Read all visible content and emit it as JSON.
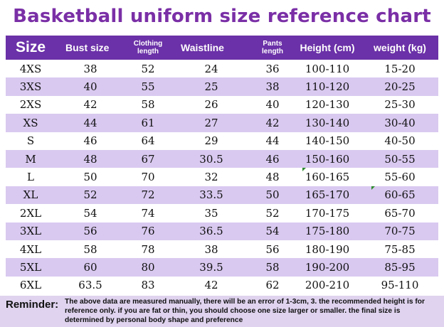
{
  "title": "Basketball uniform size reference chart",
  "headers": {
    "size": "Size",
    "bust": "Bust size",
    "clothing_line1": "Clothing",
    "clothing_line2": "length",
    "waistline": "Waistline",
    "pants_line1": "Pants",
    "pants_line2": "length",
    "height": "Height (cm)",
    "weight": "weight (kg)"
  },
  "rows": [
    {
      "size": "4XS",
      "bust": "38",
      "clothing": "52",
      "waist": "24",
      "pants": "36",
      "height": "100-110",
      "weight": "15-20"
    },
    {
      "size": "3XS",
      "bust": "40",
      "clothing": "55",
      "waist": "25",
      "pants": "38",
      "height": "110-120",
      "weight": "20-25"
    },
    {
      "size": "2XS",
      "bust": "42",
      "clothing": "58",
      "waist": "26",
      "pants": "40",
      "height": "120-130",
      "weight": "25-30"
    },
    {
      "size": "XS",
      "bust": "44",
      "clothing": "61",
      "waist": "27",
      "pants": "42",
      "height": "130-140",
      "weight": "30-40"
    },
    {
      "size": "S",
      "bust": "46",
      "clothing": "64",
      "waist": "29",
      "pants": "44",
      "height": "140-150",
      "weight": "40-50"
    },
    {
      "size": "M",
      "bust": "48",
      "clothing": "67",
      "waist": "30.5",
      "pants": "46",
      "height": "150-160",
      "weight": "50-55"
    },
    {
      "size": "L",
      "bust": "50",
      "clothing": "70",
      "waist": "32",
      "pants": "48",
      "height": "160-165",
      "weight": "55-60"
    },
    {
      "size": "XL",
      "bust": "52",
      "clothing": "72",
      "waist": "33.5",
      "pants": "50",
      "height": "165-170",
      "weight": "60-65"
    },
    {
      "size": "2XL",
      "bust": "54",
      "clothing": "74",
      "waist": "35",
      "pants": "52",
      "height": "170-175",
      "weight": "65-70"
    },
    {
      "size": "3XL",
      "bust": "56",
      "clothing": "76",
      "waist": "36.5",
      "pants": "54",
      "height": "175-180",
      "weight": "70-75"
    },
    {
      "size": "4XL",
      "bust": "58",
      "clothing": "78",
      "waist": "38",
      "pants": "56",
      "height": "180-190",
      "weight": "75-85"
    },
    {
      "size": "5XL",
      "bust": "60",
      "clothing": "80",
      "waist": "39.5",
      "pants": "58",
      "height": "190-200",
      "weight": "85-95"
    },
    {
      "size": "6XL",
      "bust": "63.5",
      "clothing": "83",
      "waist": "42",
      "pants": "62",
      "height": "200-210",
      "weight": "95-110"
    }
  ],
  "reminder": {
    "label": "Reminder:",
    "text": "The above data are measured manually, there will be an error of 1-3cm, 3. the recommended height is for reference only. if you are fat or thin, you should choose one size larger or smaller. the final size is determined by personal body shape and preference"
  },
  "colors": {
    "title": "#7a2fa6",
    "header_bg": "#6b31a8",
    "stripe": "#d9c9f0",
    "reminder_bg": "#dfd3ef"
  }
}
